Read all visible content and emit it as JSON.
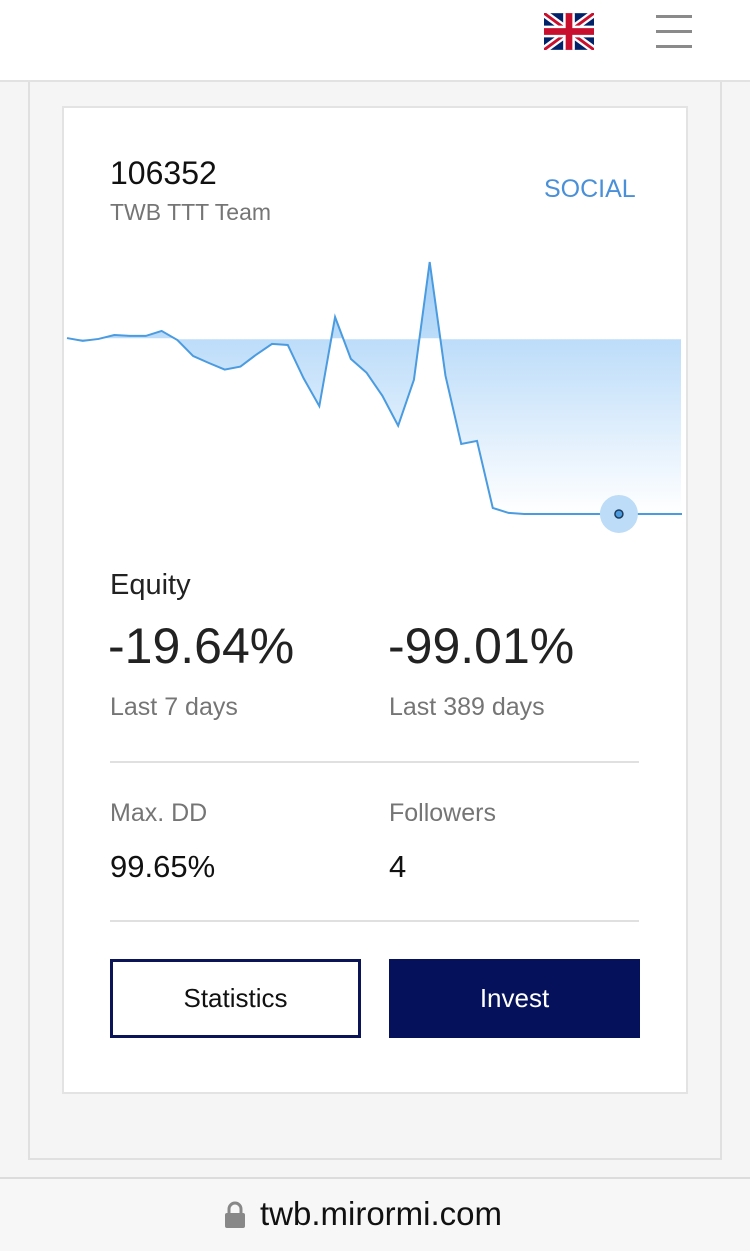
{
  "header": {
    "menu": "menu"
  },
  "card": {
    "id": "106352",
    "team": "TWB TTT Team",
    "tag": "SOCIAL",
    "chart_data": {
      "type": "line",
      "color": "#4a9be0",
      "values": [
        0.4,
        -1.2,
        -0.1,
        2.1,
        1.6,
        1.6,
        4.4,
        -0.7,
        -9.7,
        -13.6,
        -17.3,
        -15.6,
        -8.9,
        -2.9,
        -3.5,
        -22.1,
        -37.8,
        12.2,
        -11.3,
        -19.1,
        -32.0,
        -48.8,
        -23.0,
        43.1,
        -20.7,
        -59.0,
        -57.3,
        -94.9,
        -97.7,
        -98.3,
        -98.3,
        -98.3,
        -98.3,
        -98.3,
        -98.3,
        -98.3,
        -98.3,
        -98.3,
        -98.3,
        -98.3
      ],
      "ylim": [
        -100,
        47
      ],
      "baseline": 0,
      "highlight": 35
    },
    "equity_label": "Equity",
    "week_value": "-19.64%",
    "week_label": "Last 7 days",
    "total_value": "-99.01%",
    "total_label": "Last 389 days",
    "maxdd_label": "Max. DD",
    "maxdd_value": "99.65%",
    "followers_label": "Followers",
    "followers_value": "4",
    "statistics_button": "Statistics",
    "invest_button": "Invest"
  },
  "url": "twb.mirormi.com"
}
